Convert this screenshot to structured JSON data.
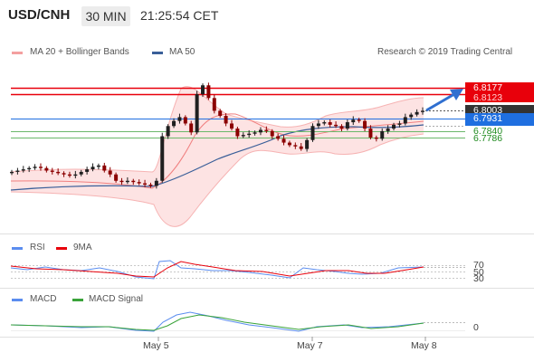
{
  "header": {
    "symbol": "USD/CNH",
    "timeframe": "30 MIN",
    "time": "21:25:54 CET"
  },
  "legend_main": {
    "bb_label": "MA 20 + Bollinger Bands",
    "ma50_label": "MA 50",
    "source": "Research © 2019 Trading Central"
  },
  "price_tags": {
    "resistance_1": "6.8177",
    "resistance_2": "6.8123",
    "last": "6.8003",
    "pivot": "6.7931",
    "support_1": "6.7840",
    "support_2": "6.7786"
  },
  "rsi_panel": {
    "rsi_label": "RSI",
    "ma_label": "9MA",
    "levels": [
      "70",
      "50",
      "30"
    ]
  },
  "macd_panel": {
    "macd_label": "MACD",
    "signal_label": "MACD Signal",
    "zero": "0"
  },
  "xaxis": {
    "ticks": [
      "May 5",
      "May 7",
      "May 8"
    ]
  },
  "colors": {
    "resistance": "#e8000b",
    "pivot": "#1f6fe0",
    "support": "#1f8a1f",
    "last_price": "#333333",
    "ma50": "#3a5f99",
    "bollinger": "#f4a0a0",
    "rsi": "#5b8def",
    "rsi_ma": "#e8000b",
    "macd": "#5b8def",
    "macd_signal": "#3aa33a",
    "candle_up": "#1f1f1f",
    "candle_down": "#8b0000"
  },
  "chart_data": {
    "type": "candlestick",
    "instrument": "USD/CNH",
    "interval": "30 MIN",
    "levels": [
      {
        "value": 6.8177,
        "role": "resistance"
      },
      {
        "value": 6.8123,
        "role": "resistance"
      },
      {
        "value": 6.8003,
        "role": "last"
      },
      {
        "value": 6.7931,
        "role": "pivot"
      },
      {
        "value": 6.784,
        "role": "support"
      },
      {
        "value": 6.7786,
        "role": "support"
      }
    ],
    "price_close_estimates": [
      6.752,
      6.753,
      6.754,
      6.755,
      6.756,
      6.755,
      6.753,
      6.752,
      6.751,
      6.75,
      6.749,
      6.75,
      6.752,
      6.754,
      6.756,
      6.757,
      6.753,
      6.75,
      6.745,
      6.744,
      6.745,
      6.744,
      6.743,
      6.742,
      6.741,
      6.745,
      6.78,
      6.788,
      6.792,
      6.795,
      6.79,
      6.783,
      6.813,
      6.82,
      6.81,
      6.8,
      6.796,
      6.79,
      6.786,
      6.78,
      6.781,
      6.782,
      6.783,
      6.785,
      6.784,
      6.78,
      6.778,
      6.775,
      6.773,
      6.772,
      6.77,
      6.777,
      6.788,
      6.79,
      6.791,
      6.789,
      6.788,
      6.786,
      6.791,
      6.793,
      6.792,
      6.786,
      6.779,
      6.778,
      6.784,
      6.786,
      6.789,
      6.79,
      6.795,
      6.797,
      6.799,
      6.8
    ],
    "rsi_range": [
      30,
      70
    ],
    "macd_zero": 0,
    "xaxis_ticks": [
      "May 5",
      "May 7",
      "May 8"
    ]
  }
}
